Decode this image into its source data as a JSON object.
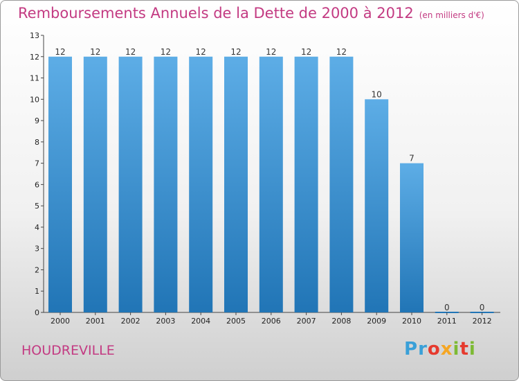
{
  "header": {
    "title": "Remboursements Annuels de la Dette de 2000 à 2012",
    "unit": "(en milliers d'€)"
  },
  "commune": "HOUDREVILLE",
  "logo": {
    "text": "Proxiti",
    "colors": [
      "#3aa0d8",
      "#3aa0d8",
      "#e63a2e",
      "#f5a623",
      "#7dba34",
      "#e63a2e",
      "#7dba34"
    ]
  },
  "colors": {
    "bar_top": "#5dade6",
    "bar_bottom": "#2175b6",
    "title": "#c33a82"
  },
  "chart_data": {
    "type": "bar",
    "categories": [
      "2000",
      "2001",
      "2002",
      "2003",
      "2004",
      "2005",
      "2006",
      "2007",
      "2008",
      "2009",
      "2010",
      "2011",
      "2012"
    ],
    "values": [
      12,
      12,
      12,
      12,
      12,
      12,
      12,
      12,
      12,
      10,
      7,
      0,
      0
    ],
    "ylim": [
      0,
      13
    ],
    "yticks": [
      0,
      1,
      2,
      3,
      4,
      5,
      6,
      7,
      8,
      9,
      10,
      11,
      12,
      13
    ],
    "title": "Remboursements Annuels de la Dette de 2000 à 2012",
    "xlabel": "",
    "ylabel": "",
    "grid": false,
    "data_labels": true
  }
}
